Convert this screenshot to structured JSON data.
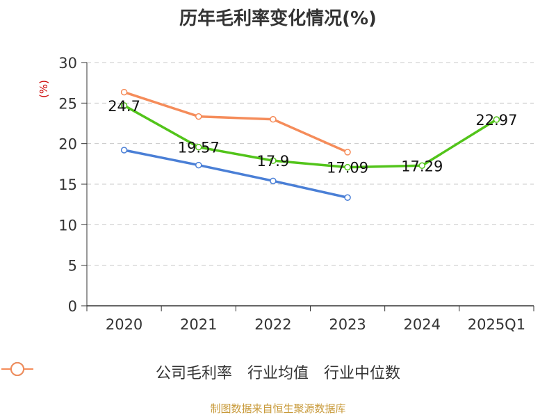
{
  "chart_data": {
    "type": "line",
    "title": "历年毛利率变化情况(%)",
    "ylabel": "(%)",
    "xlabel": "",
    "categories": [
      "2020",
      "2021",
      "2022",
      "2023",
      "2024",
      "2025Q1"
    ],
    "ylim": [
      0,
      30
    ],
    "yticks": [
      0,
      5,
      10,
      15,
      20,
      25,
      30
    ],
    "grid": true,
    "legend_position": "bottom",
    "series": [
      {
        "name": "公司毛利率",
        "color": "#52c41a",
        "values": [
          24.7,
          19.57,
          17.9,
          17.09,
          17.29,
          22.97
        ],
        "labels": [
          "24.7",
          "19.57",
          "17.9",
          "17.09",
          "17.29",
          "22.97"
        ]
      },
      {
        "name": "行业均值",
        "color": "#4a7fd6",
        "values": [
          19.2,
          17.35,
          15.4,
          13.35,
          null,
          null
        ]
      },
      {
        "name": "行业中位数",
        "color": "#f58c5a",
        "values": [
          26.35,
          23.35,
          23.0,
          18.95,
          null,
          null
        ]
      }
    ]
  },
  "source_note": "制图数据来自恒生聚源数据库"
}
